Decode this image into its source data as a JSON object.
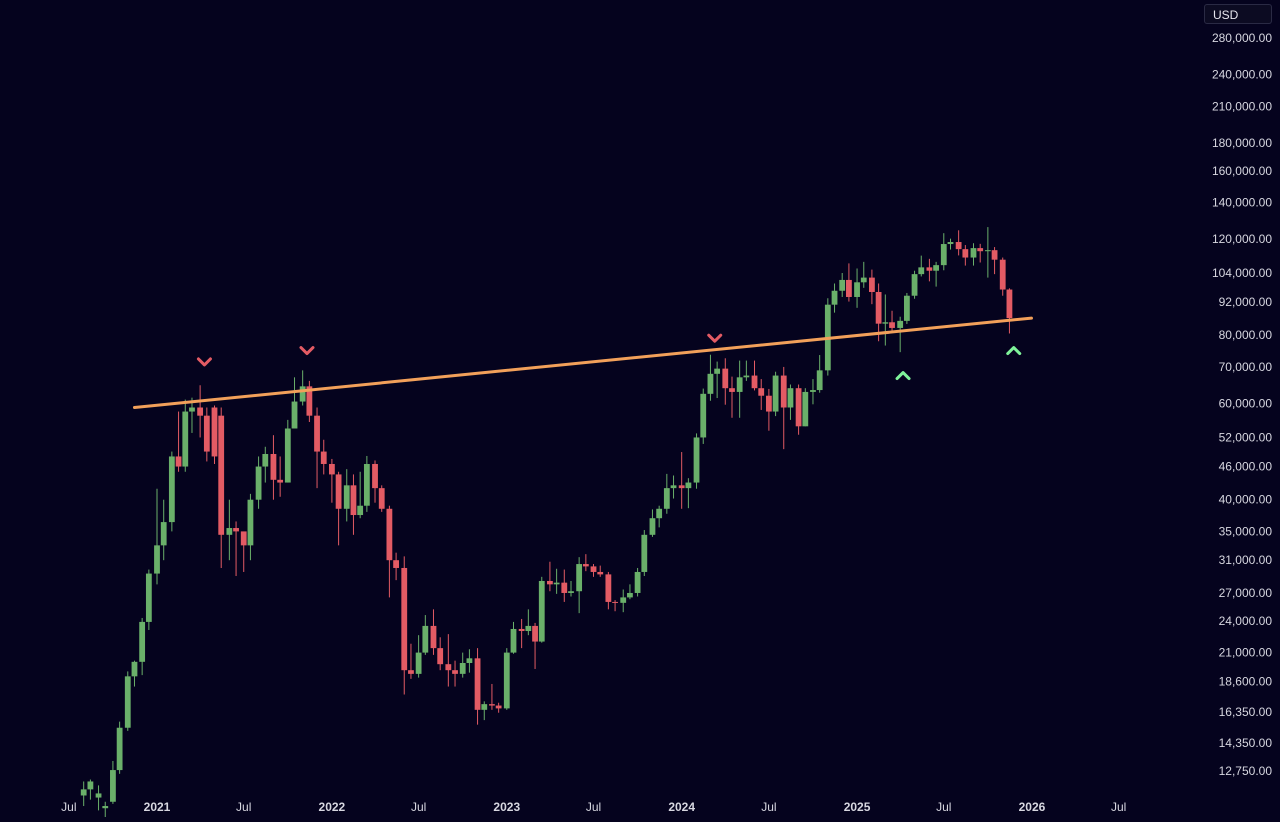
{
  "currency": "USD",
  "colors": {
    "background": "#05031e",
    "up": "#6ab06a",
    "down": "#e35b64",
    "trendline": "#f2a05a",
    "marker_down": "#e35b64",
    "marker_up": "#7ff39a",
    "axis_text": "#d7d7e0"
  },
  "chart_data": {
    "type": "candlestick",
    "interval": "weekly",
    "scale": "log",
    "ylim": [
      11750,
      300000
    ],
    "xlim": [
      "2020-06-01",
      "2026-08-01"
    ],
    "y_ticks": [
      {
        "value": 280000,
        "label": "280,000.00"
      },
      {
        "value": 240000,
        "label": "240,000.00"
      },
      {
        "value": 210000,
        "label": "210,000.00"
      },
      {
        "value": 180000,
        "label": "180,000.00"
      },
      {
        "value": 160000,
        "label": "160,000.00"
      },
      {
        "value": 140000,
        "label": "140,000.00"
      },
      {
        "value": 120000,
        "label": "120,000.00"
      },
      {
        "value": 104000,
        "label": "104,000.00"
      },
      {
        "value": 92000,
        "label": "92,000.00"
      },
      {
        "value": 80000,
        "label": "80,000.00"
      },
      {
        "value": 70000,
        "label": "70,000.00"
      },
      {
        "value": 60000,
        "label": "60,000.00"
      },
      {
        "value": 52000,
        "label": "52,000.00"
      },
      {
        "value": 46000,
        "label": "46,000.00"
      },
      {
        "value": 40000,
        "label": "40,000.00"
      },
      {
        "value": 35000,
        "label": "35,000.00"
      },
      {
        "value": 31000,
        "label": "31,000.00"
      },
      {
        "value": 27000,
        "label": "27,000.00"
      },
      {
        "value": 24000,
        "label": "24,000.00"
      },
      {
        "value": 21000,
        "label": "21,000.00"
      },
      {
        "value": 18600,
        "label": "18,600.00"
      },
      {
        "value": 16350,
        "label": "16,350.00"
      },
      {
        "value": 14350,
        "label": "14,350.00"
      },
      {
        "value": 12750,
        "label": "12,750.00"
      }
    ],
    "x_ticks": [
      {
        "date": "2020-07-01",
        "label": "Jul",
        "year": false
      },
      {
        "date": "2021-01-01",
        "label": "2021",
        "year": true
      },
      {
        "date": "2021-07-01",
        "label": "Jul",
        "year": false
      },
      {
        "date": "2022-01-01",
        "label": "2022",
        "year": true
      },
      {
        "date": "2022-07-01",
        "label": "Jul",
        "year": false
      },
      {
        "date": "2023-01-01",
        "label": "2023",
        "year": true
      },
      {
        "date": "2023-07-01",
        "label": "Jul",
        "year": false
      },
      {
        "date": "2024-01-01",
        "label": "2024",
        "year": true
      },
      {
        "date": "2024-07-01",
        "label": "Jul",
        "year": false
      },
      {
        "date": "2025-01-01",
        "label": "2025",
        "year": true
      },
      {
        "date": "2025-07-01",
        "label": "Jul",
        "year": false
      },
      {
        "date": "2026-01-01",
        "label": "2026",
        "year": true
      },
      {
        "date": "2026-07-01",
        "label": "Jul",
        "year": false
      }
    ],
    "trendline": {
      "start": {
        "date": "2020-11-15",
        "price": 59000
      },
      "end": {
        "date": "2025-12-31",
        "price": 86000
      }
    },
    "markers": [
      {
        "date": "2021-04-10",
        "price": 71500,
        "direction": "down"
      },
      {
        "date": "2021-11-10",
        "price": 75000,
        "direction": "down"
      },
      {
        "date": "2024-03-10",
        "price": 79000,
        "direction": "down"
      },
      {
        "date": "2025-04-07",
        "price": 67500,
        "direction": "up"
      },
      {
        "date": "2025-11-24",
        "price": 75000,
        "direction": "up"
      }
    ],
    "candles": [
      [
        "2020-08-01",
        11500,
        11800,
        12200,
        11000
      ],
      [
        "2020-08-15",
        11800,
        12200,
        12300,
        11300
      ],
      [
        "2020-09-01",
        11400,
        11600,
        12000,
        10800
      ],
      [
        "2020-09-15",
        10900,
        11000,
        11200,
        10300
      ],
      [
        "2020-10-01",
        11200,
        12800,
        13300,
        11100
      ],
      [
        "2020-10-15",
        12800,
        15300,
        15700,
        12600
      ],
      [
        "2020-11-01",
        15300,
        19000,
        19400,
        15100
      ],
      [
        "2020-11-15",
        19000,
        20200,
        20300,
        18200
      ],
      [
        "2020-12-01",
        20200,
        23900,
        24300,
        19100
      ],
      [
        "2020-12-15",
        23900,
        29300,
        29800,
        23100
      ],
      [
        "2021-01-01",
        29300,
        33000,
        41900,
        28000
      ],
      [
        "2021-01-15",
        33000,
        36400,
        40000,
        31000
      ],
      [
        "2021-02-01",
        36400,
        48000,
        49000,
        35000
      ],
      [
        "2021-02-15",
        48000,
        46000,
        58000,
        45000
      ],
      [
        "2021-03-01",
        46000,
        58000,
        61000,
        45000
      ],
      [
        "2021-03-15",
        58000,
        59000,
        61500,
        53000
      ],
      [
        "2021-04-01",
        59000,
        57000,
        64800,
        52000
      ],
      [
        "2021-04-15",
        57000,
        49000,
        59000,
        47000
      ],
      [
        "2021-05-01",
        59000,
        48000,
        59500,
        46500
      ],
      [
        "2021-05-15",
        57000,
        34500,
        59000,
        30000
      ],
      [
        "2021-06-01",
        34500,
        35500,
        40000,
        31000
      ],
      [
        "2021-06-15",
        35500,
        35000,
        36500,
        29000
      ],
      [
        "2021-07-01",
        35000,
        33000,
        34500,
        29500
      ],
      [
        "2021-07-15",
        33000,
        40000,
        41000,
        31000
      ],
      [
        "2021-08-01",
        40000,
        46000,
        48000,
        38500
      ],
      [
        "2021-08-15",
        46000,
        48500,
        50000,
        43000
      ],
      [
        "2021-09-01",
        48500,
        43500,
        52500,
        40000
      ],
      [
        "2021-09-15",
        43500,
        43000,
        48000,
        40500
      ],
      [
        "2021-10-01",
        43000,
        54000,
        56000,
        43000
      ],
      [
        "2021-10-15",
        54000,
        60500,
        67000,
        54000
      ],
      [
        "2021-11-01",
        60500,
        64500,
        69000,
        59500
      ],
      [
        "2021-11-15",
        64500,
        57000,
        66000,
        55500
      ],
      [
        "2021-12-01",
        57000,
        49000,
        59000,
        42000
      ],
      [
        "2021-12-15",
        49000,
        46500,
        51500,
        44500
      ],
      [
        "2022-01-01",
        46500,
        44500,
        47500,
        39500
      ],
      [
        "2022-01-15",
        44500,
        38500,
        45000,
        33000
      ],
      [
        "2022-02-01",
        38500,
        42500,
        45500,
        36500
      ],
      [
        "2022-02-15",
        42500,
        37500,
        44500,
        34500
      ],
      [
        "2022-03-01",
        37500,
        39000,
        45000,
        37000
      ],
      [
        "2022-03-15",
        39000,
        46500,
        48100,
        38000
      ],
      [
        "2022-04-01",
        46500,
        42000,
        47200,
        39500
      ],
      [
        "2022-04-15",
        42000,
        38500,
        42500,
        38000
      ],
      [
        "2022-05-01",
        38500,
        31000,
        39000,
        26500
      ],
      [
        "2022-05-15",
        31000,
        30000,
        32000,
        28500
      ],
      [
        "2022-06-01",
        30000,
        19500,
        31500,
        17600
      ],
      [
        "2022-06-15",
        19500,
        19200,
        21800,
        18800
      ],
      [
        "2022-07-01",
        19200,
        21000,
        22600,
        18900
      ],
      [
        "2022-07-15",
        21000,
        23500,
        24600,
        20800
      ],
      [
        "2022-08-01",
        23500,
        21400,
        25200,
        20800
      ],
      [
        "2022-08-15",
        21400,
        20000,
        22400,
        19500
      ],
      [
        "2022-09-01",
        20000,
        19500,
        22700,
        18200
      ],
      [
        "2022-09-15",
        19500,
        19200,
        20300,
        18200
      ],
      [
        "2022-10-01",
        19200,
        20100,
        21000,
        18900
      ],
      [
        "2022-10-15",
        20100,
        20500,
        21300,
        19300
      ],
      [
        "2022-11-01",
        20500,
        16500,
        21400,
        15500
      ],
      [
        "2022-11-15",
        16500,
        16900,
        17100,
        15800
      ],
      [
        "2022-12-01",
        16900,
        16800,
        18400,
        16500
      ],
      [
        "2022-12-15",
        16800,
        16600,
        17000,
        16300
      ],
      [
        "2023-01-01",
        16600,
        21000,
        21400,
        16500
      ],
      [
        "2023-01-15",
        21000,
        23200,
        23900,
        20900
      ],
      [
        "2023-02-01",
        23200,
        23000,
        24200,
        21400
      ],
      [
        "2023-02-15",
        23000,
        23500,
        25200,
        22600
      ],
      [
        "2023-03-01",
        23500,
        22000,
        23800,
        19600
      ],
      [
        "2023-03-15",
        22000,
        28400,
        28900,
        21900
      ],
      [
        "2023-04-01",
        28400,
        28000,
        30800,
        27200
      ],
      [
        "2023-04-15",
        28000,
        28200,
        29900,
        26900
      ],
      [
        "2023-05-01",
        28200,
        27000,
        29800,
        26000
      ],
      [
        "2023-05-15",
        27000,
        27200,
        28400,
        26600
      ],
      [
        "2023-06-01",
        27200,
        30500,
        31400,
        24800
      ],
      [
        "2023-06-15",
        30500,
        30200,
        31800,
        29600
      ],
      [
        "2023-07-01",
        30200,
        29500,
        30500,
        28900
      ],
      [
        "2023-07-15",
        29500,
        29200,
        30300,
        28900
      ],
      [
        "2023-08-01",
        29200,
        26000,
        29500,
        25200
      ],
      [
        "2023-08-15",
        26000,
        25900,
        26200,
        25000
      ],
      [
        "2023-09-01",
        25900,
        26500,
        27400,
        24900
      ],
      [
        "2023-09-15",
        26500,
        27000,
        28000,
        26300
      ],
      [
        "2023-10-01",
        27000,
        29500,
        30000,
        26600
      ],
      [
        "2023-10-15",
        29500,
        34500,
        35200,
        29000
      ],
      [
        "2023-11-01",
        34500,
        37000,
        38400,
        34200
      ],
      [
        "2023-11-15",
        37000,
        38500,
        39000,
        35600
      ],
      [
        "2023-12-01",
        38500,
        42000,
        44600,
        37700
      ],
      [
        "2023-12-15",
        42000,
        42500,
        44300,
        40200
      ],
      [
        "2024-01-01",
        42500,
        42000,
        48900,
        38500
      ],
      [
        "2024-01-15",
        42000,
        43000,
        43800,
        38600
      ],
      [
        "2024-02-01",
        43000,
        52000,
        52900,
        41900
      ],
      [
        "2024-02-15",
        52000,
        62500,
        63900,
        50600
      ],
      [
        "2024-03-01",
        62500,
        68000,
        73700,
        60700
      ],
      [
        "2024-03-15",
        68000,
        69500,
        71600,
        61400
      ],
      [
        "2024-04-01",
        69500,
        64000,
        72600,
        59700
      ],
      [
        "2024-04-15",
        64000,
        63000,
        67200,
        56500
      ],
      [
        "2024-05-01",
        63000,
        67000,
        71900,
        56500
      ],
      [
        "2024-05-15",
        67000,
        67500,
        71900,
        66000
      ],
      [
        "2024-06-01",
        67500,
        64000,
        71900,
        63400
      ],
      [
        "2024-06-15",
        64000,
        62000,
        66500,
        58400
      ],
      [
        "2024-07-01",
        62000,
        58000,
        63800,
        53500
      ],
      [
        "2024-07-15",
        58000,
        67500,
        68600,
        56900
      ],
      [
        "2024-08-01",
        67500,
        59000,
        70000,
        49500
      ],
      [
        "2024-08-15",
        59000,
        64000,
        65000,
        56000
      ],
      [
        "2024-09-01",
        64000,
        54500,
        65000,
        52600
      ],
      [
        "2024-09-15",
        54500,
        63000,
        64000,
        54500
      ],
      [
        "2024-10-01",
        63000,
        63500,
        66500,
        59800
      ],
      [
        "2024-10-15",
        63500,
        69000,
        73600,
        62800
      ],
      [
        "2024-11-01",
        69000,
        91000,
        93500,
        67500
      ],
      [
        "2024-11-15",
        91000,
        96500,
        99500,
        88000
      ],
      [
        "2024-12-01",
        96500,
        101000,
        104000,
        94000
      ],
      [
        "2024-12-15",
        101000,
        94000,
        108300,
        92200
      ],
      [
        "2025-01-01",
        94000,
        100000,
        106000,
        89800
      ],
      [
        "2025-01-15",
        100000,
        102000,
        109000,
        97700
      ],
      [
        "2025-02-01",
        102000,
        96000,
        105500,
        91200
      ],
      [
        "2025-02-15",
        96000,
        84000,
        99500,
        78000
      ],
      [
        "2025-03-01",
        84000,
        84500,
        95000,
        76600
      ],
      [
        "2025-03-15",
        84500,
        82500,
        88700,
        81200
      ],
      [
        "2025-04-01",
        82500,
        85000,
        86500,
        74500
      ],
      [
        "2025-04-15",
        85000,
        94500,
        95600,
        83900
      ],
      [
        "2025-05-01",
        94500,
        103500,
        105000,
        93300
      ],
      [
        "2025-05-15",
        103500,
        106500,
        111900,
        102500
      ],
      [
        "2025-06-01",
        106500,
        105000,
        110400,
        100400
      ],
      [
        "2025-06-15",
        105000,
        107500,
        109000,
        98200
      ],
      [
        "2025-07-01",
        107500,
        117500,
        123000,
        105200
      ],
      [
        "2025-07-15",
        117500,
        118500,
        120200,
        114800
      ],
      [
        "2025-08-01",
        118500,
        115000,
        124500,
        112000
      ],
      [
        "2025-08-15",
        115000,
        111000,
        117000,
        107300
      ],
      [
        "2025-09-01",
        111000,
        115500,
        117900,
        107300
      ],
      [
        "2025-09-15",
        115500,
        114000,
        117600,
        108700
      ],
      [
        "2025-10-01",
        114000,
        114500,
        126200,
        102000
      ],
      [
        "2025-10-15",
        114500,
        110000,
        116000,
        103500
      ],
      [
        "2025-11-01",
        110000,
        97000,
        111000,
        94500
      ],
      [
        "2025-11-15",
        97000,
        86000,
        97500,
        80600
      ]
    ]
  }
}
